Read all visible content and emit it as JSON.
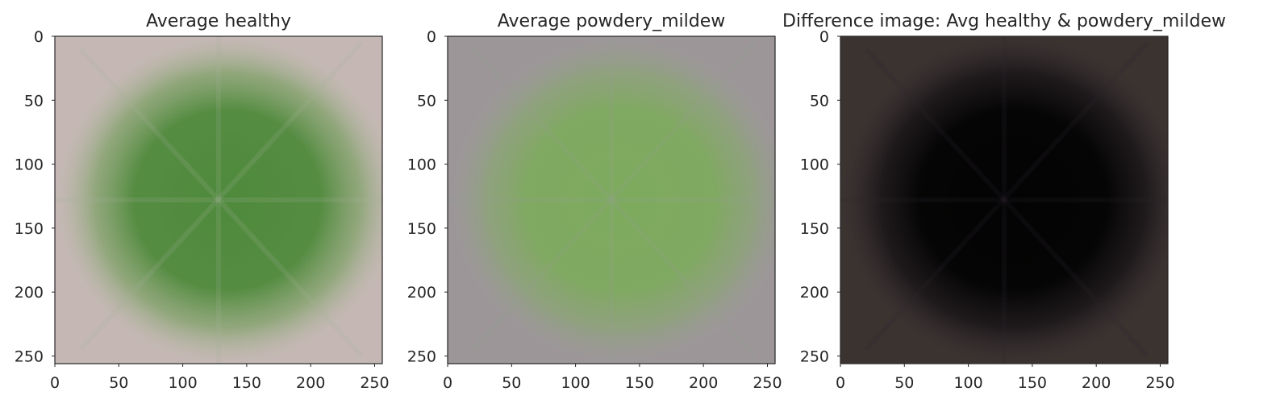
{
  "chart_data": [
    {
      "type": "image",
      "title": "Average healthy",
      "xlabel": "",
      "ylabel": "",
      "xlim": [
        0,
        256
      ],
      "ylim": [
        256,
        0
      ],
      "xticks": [
        0,
        50,
        100,
        150,
        200,
        250
      ],
      "yticks": [
        0,
        50,
        100,
        150,
        200,
        250
      ],
      "grid": false,
      "colors": {
        "background": "#c5b8b4",
        "center": "#4f8a3c",
        "mid": "#7ca064",
        "outer": "#a9b39a"
      }
    },
    {
      "type": "image",
      "title": "Average powdery_mildew",
      "xlabel": "",
      "ylabel": "",
      "xlim": [
        0,
        256
      ],
      "ylim": [
        256,
        0
      ],
      "xticks": [
        0,
        50,
        100,
        150,
        200,
        250
      ],
      "yticks": [
        0,
        50,
        100,
        150,
        200,
        250
      ],
      "grid": false,
      "colors": {
        "background": "#9c9699",
        "center": "#7eaa5e",
        "mid": "#8aa672",
        "outer": "#98a08e"
      }
    },
    {
      "type": "image",
      "title": "Difference image: Avg healthy & powdery_mildew",
      "xlabel": "",
      "ylabel": "",
      "xlim": [
        0,
        256
      ],
      "ylim": [
        256,
        0
      ],
      "xticks": [
        0,
        50,
        100,
        150,
        200,
        250
      ],
      "yticks": [
        0,
        50,
        100,
        150,
        200,
        250
      ],
      "grid": false,
      "colors": {
        "background": "#3b3330",
        "center": "#030303",
        "mid": "#120f12",
        "outer": "#2d2530"
      }
    }
  ]
}
